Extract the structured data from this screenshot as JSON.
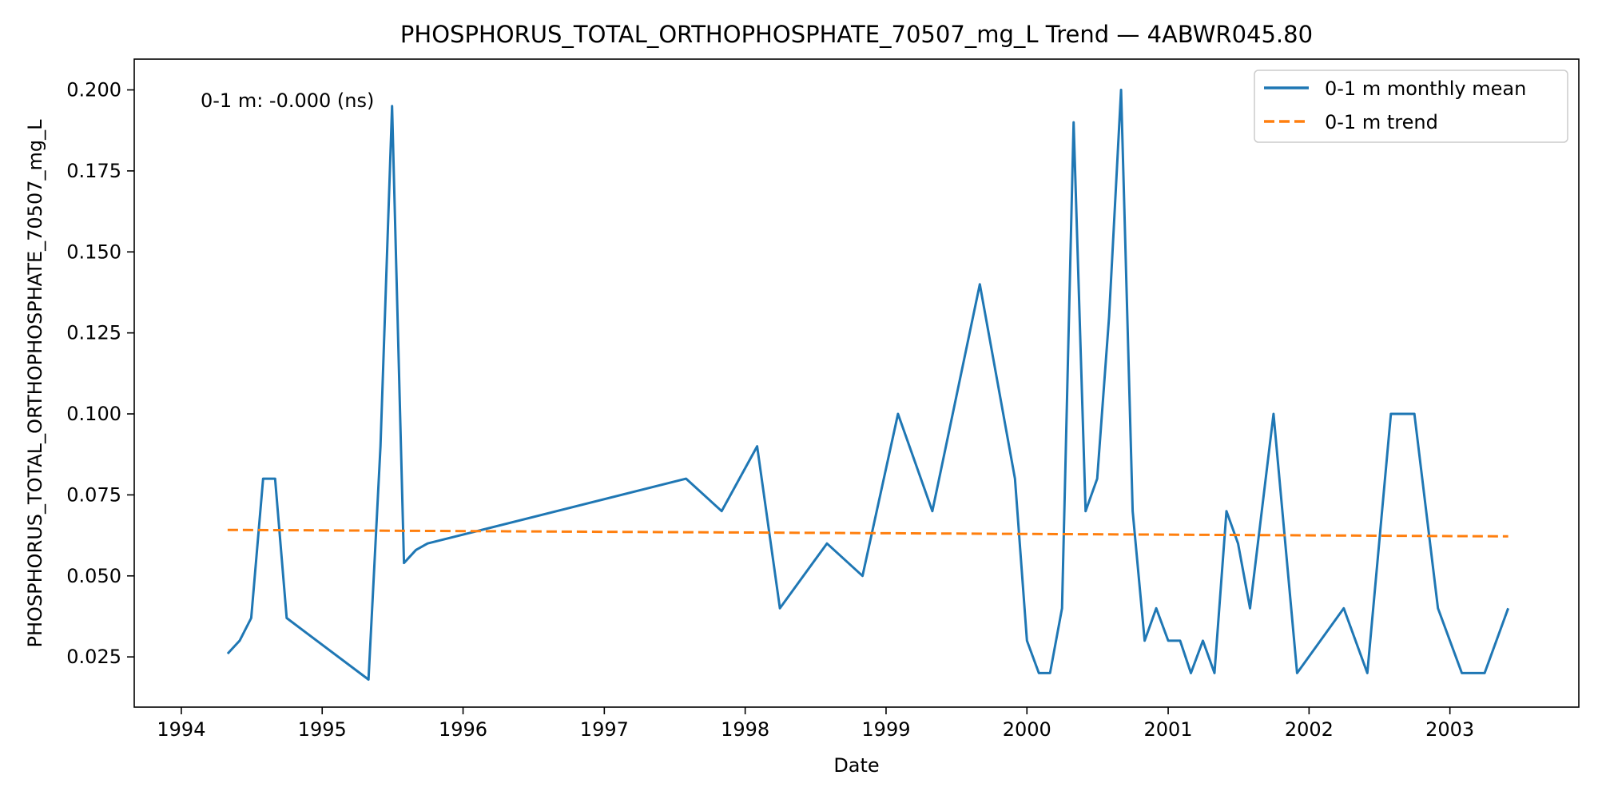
{
  "chart_data": {
    "type": "line",
    "title": "PHOSPHORUS_TOTAL_ORTHOPHOSPHATE_70507_mg_L Trend — 4ABWR045.80",
    "xlabel": "Date",
    "ylabel": "PHOSPHORUS_TOTAL_ORTHOPHOSPHATE_70507_mg_L",
    "annotation": "0-1 m: -0.000 (ns)",
    "legend_position": "top-right",
    "grid": false,
    "xlim": [
      "1993-09-01",
      "2003-12-01"
    ],
    "ylim": [
      0.0095,
      0.2095
    ],
    "x_ticks": [
      "1994",
      "1995",
      "1996",
      "1997",
      "1998",
      "1999",
      "2000",
      "2001",
      "2002",
      "2003"
    ],
    "y_ticks": [
      "0.025",
      "0.050",
      "0.075",
      "0.100",
      "0.125",
      "0.150",
      "0.175",
      "0.200"
    ],
    "series": [
      {
        "name": "0-1 m monthly mean",
        "style": "solid",
        "color": "#1f77b4",
        "points": [
          [
            "1994-05-01",
            0.026
          ],
          [
            "1994-06-01",
            0.03
          ],
          [
            "1994-07-01",
            0.037
          ],
          [
            "1994-08-01",
            0.08
          ],
          [
            "1994-09-01",
            0.08
          ],
          [
            "1994-10-01",
            0.037
          ],
          [
            "1995-05-01",
            0.018
          ],
          [
            "1995-06-01",
            0.09
          ],
          [
            "1995-07-01",
            0.195
          ],
          [
            "1995-08-01",
            0.054
          ],
          [
            "1995-09-01",
            0.058
          ],
          [
            "1995-10-01",
            0.06
          ],
          [
            "1997-08-01",
            0.08
          ],
          [
            "1997-11-01",
            0.07
          ],
          [
            "1998-02-01",
            0.09
          ],
          [
            "1998-04-01",
            0.04
          ],
          [
            "1998-08-01",
            0.06
          ],
          [
            "1998-11-01",
            0.05
          ],
          [
            "1999-02-01",
            0.1
          ],
          [
            "1999-05-01",
            0.07
          ],
          [
            "1999-09-01",
            0.14
          ],
          [
            "1999-12-01",
            0.08
          ],
          [
            "2000-01-01",
            0.03
          ],
          [
            "2000-02-01",
            0.02
          ],
          [
            "2000-03-01",
            0.02
          ],
          [
            "2000-04-01",
            0.04
          ],
          [
            "2000-05-01",
            0.19
          ],
          [
            "2000-06-01",
            0.07
          ],
          [
            "2000-07-01",
            0.08
          ],
          [
            "2000-08-01",
            0.13
          ],
          [
            "2000-09-01",
            0.2
          ],
          [
            "2000-10-01",
            0.07
          ],
          [
            "2000-11-01",
            0.03
          ],
          [
            "2000-12-01",
            0.04
          ],
          [
            "2001-01-01",
            0.03
          ],
          [
            "2001-02-01",
            0.03
          ],
          [
            "2001-03-01",
            0.02
          ],
          [
            "2001-04-01",
            0.03
          ],
          [
            "2001-05-01",
            0.02
          ],
          [
            "2001-06-01",
            0.07
          ],
          [
            "2001-07-01",
            0.06
          ],
          [
            "2001-08-01",
            0.04
          ],
          [
            "2001-10-01",
            0.1
          ],
          [
            "2001-12-01",
            0.02
          ],
          [
            "2002-04-01",
            0.04
          ],
          [
            "2002-06-01",
            0.02
          ],
          [
            "2002-08-01",
            0.1
          ],
          [
            "2002-10-01",
            0.1
          ],
          [
            "2002-12-01",
            0.04
          ],
          [
            "2003-02-01",
            0.02
          ],
          [
            "2003-04-01",
            0.02
          ],
          [
            "2003-06-01",
            0.04
          ]
        ]
      },
      {
        "name": "0-1 m trend",
        "style": "dashed",
        "color": "#ff7f0e",
        "points": [
          [
            "1994-05-01",
            0.0642
          ],
          [
            "2003-06-01",
            0.0622
          ]
        ]
      }
    ]
  }
}
